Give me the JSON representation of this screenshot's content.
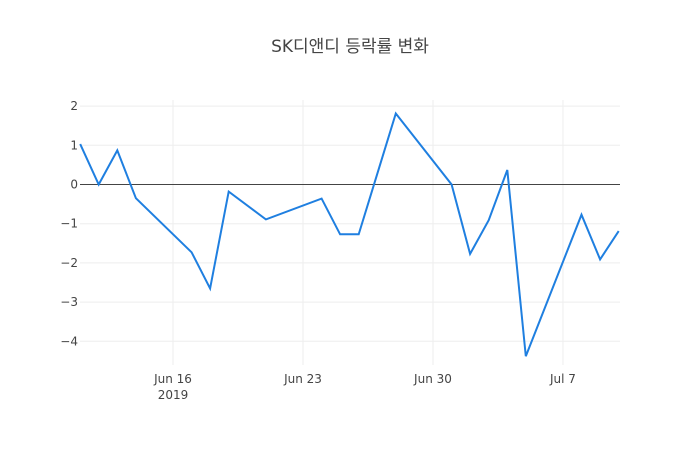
{
  "chart_data": {
    "type": "line",
    "title": "SK디앤디 등락률 변화",
    "xlabel": "",
    "ylabel": "",
    "ylim": [
      -4.6,
      2.2
    ],
    "grid": true,
    "legend": "none",
    "line_color": "#1f7fe0",
    "x_ticks": [
      {
        "label": "Jun 16",
        "sub": "2019",
        "date": "2019-06-16"
      },
      {
        "label": "Jun 23",
        "sub": "",
        "date": "2019-06-23"
      },
      {
        "label": "Jun 30",
        "sub": "",
        "date": "2019-06-30"
      },
      {
        "label": "Jul 7",
        "sub": "",
        "date": "2019-07-07"
      }
    ],
    "y_ticks": [
      2,
      1,
      0,
      -1,
      -2,
      -3,
      -4
    ],
    "y_tick_labels": [
      "2",
      "1",
      "0",
      "−1",
      "−2",
      "−3",
      "−4"
    ],
    "x": [
      "2019-06-11",
      "2019-06-12",
      "2019-06-13",
      "2019-06-14",
      "2019-06-17",
      "2019-06-18",
      "2019-06-19",
      "2019-06-21",
      "2019-06-24",
      "2019-06-25",
      "2019-06-26",
      "2019-06-28",
      "2019-07-01",
      "2019-07-02",
      "2019-07-03",
      "2019-07-04",
      "2019-07-05",
      "2019-07-08",
      "2019-07-09",
      "2019-07-10"
    ],
    "values": [
      1.03,
      0.0,
      0.87,
      -0.35,
      -1.73,
      -2.65,
      -0.18,
      -0.89,
      -0.36,
      -1.27,
      -1.27,
      1.81,
      0.0,
      -1.77,
      -0.91,
      0.37,
      -4.38,
      -0.77,
      -1.91,
      -1.19
    ]
  }
}
